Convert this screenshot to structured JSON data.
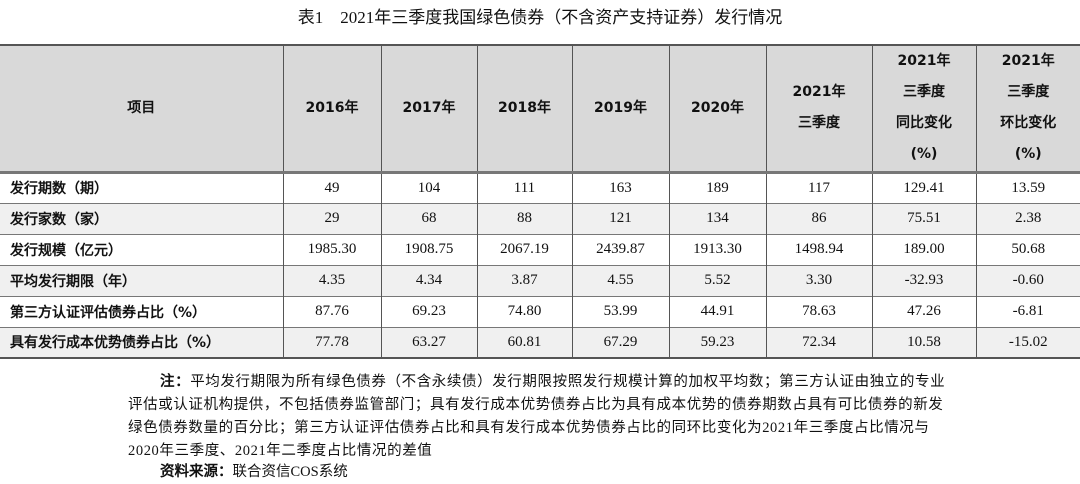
{
  "title": "表1　2021年三季度我国绿色债券（不含资产支持证券）发行情况",
  "table": {
    "headers": [
      [
        "项目"
      ],
      [
        "2016年"
      ],
      [
        "2017年"
      ],
      [
        "2018年"
      ],
      [
        "2019年"
      ],
      [
        "2020年"
      ],
      [
        "2021年",
        "三季度"
      ],
      [
        "2021年",
        "三季度",
        "同比变化",
        "(%)"
      ],
      [
        "2021年",
        "三季度",
        "环比变化",
        "(%)"
      ]
    ],
    "rows": [
      {
        "label": "发行期数（期）",
        "values": [
          "49",
          "104",
          "111",
          "163",
          "189",
          "117",
          "129.41",
          "13.59"
        ]
      },
      {
        "label": "发行家数（家）",
        "values": [
          "29",
          "68",
          "88",
          "121",
          "134",
          "86",
          "75.51",
          "2.38"
        ]
      },
      {
        "label": "发行规模（亿元）",
        "values": [
          "1985.30",
          "1908.75",
          "2067.19",
          "2439.87",
          "1913.30",
          "1498.94",
          "189.00",
          "50.68"
        ]
      },
      {
        "label": "平均发行期限（年）",
        "values": [
          "4.35",
          "4.34",
          "3.87",
          "4.55",
          "5.52",
          "3.30",
          "-32.93",
          "-0.60"
        ]
      },
      {
        "label": "第三方认证评估债券占比（%）",
        "values": [
          "87.76",
          "69.23",
          "74.80",
          "53.99",
          "44.91",
          "78.63",
          "47.26",
          "-6.81"
        ]
      },
      {
        "label": "具有发行成本优势债券占比（%）",
        "values": [
          "77.78",
          "63.27",
          "60.81",
          "67.29",
          "59.23",
          "72.34",
          "10.58",
          "-15.02"
        ]
      }
    ]
  },
  "notes": {
    "prefix": "注：",
    "text": "平均发行期限为所有绿色债券（不含永续债）发行期限按照发行规模计算的加权平均数；第三方认证由独立的专业评估或认证机构提供，不包括债券监管部门；具有发行成本优势债券占比为具有成本优势的债券期数占具有可比债券的新发绿色债券数量的百分比；第三方认证评估债券占比和具有发行成本优势债券占比的同环比变化为2021年三季度占比情况与2020年三季度、2021年二季度占比情况的差值"
  },
  "source": {
    "prefix": "资料来源：",
    "text": "联合资信COS系统"
  },
  "colors": {
    "header_bg": "#d9d9d9",
    "alt_row_bg": "#f0f0f0"
  }
}
